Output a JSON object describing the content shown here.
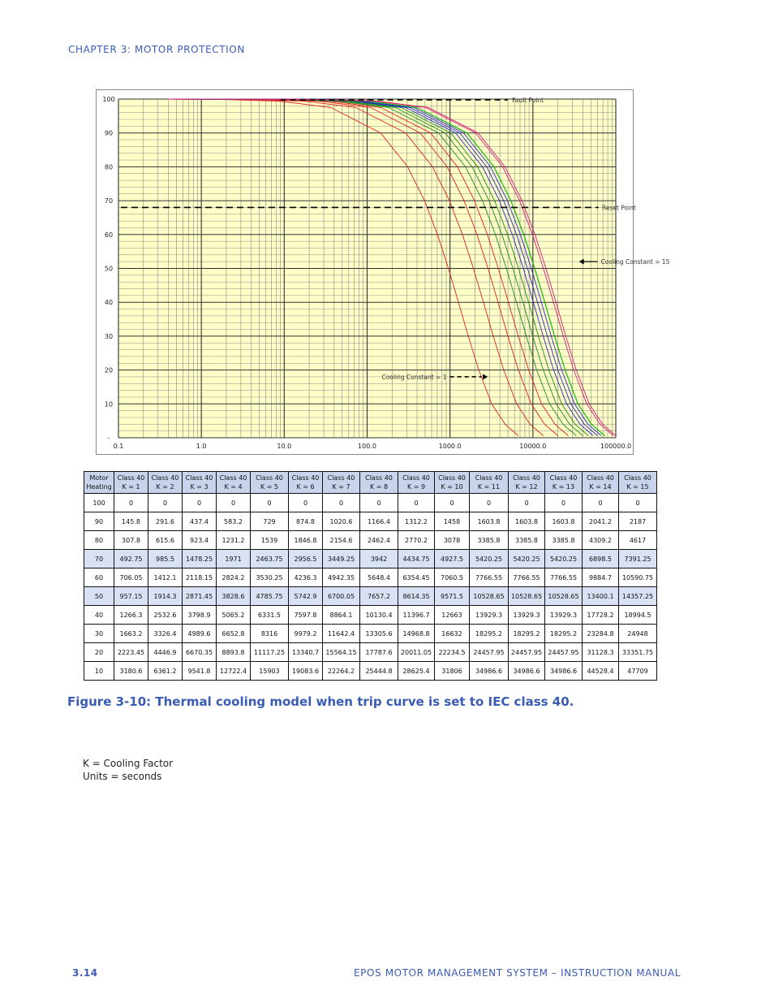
{
  "header": {
    "chapter": "CHAPTER 3: MOTOR PROTECTION"
  },
  "chart_data": {
    "type": "line",
    "xscale": "log",
    "xlim": [
      0.1,
      100000
    ],
    "ylim": [
      0,
      100
    ],
    "x_tick_labels": [
      "0.1",
      "1.0",
      "10.0",
      "100.0",
      "1000.0",
      "10000.0",
      "100000.0"
    ],
    "y_tick_labels": [
      "100",
      "90",
      "80",
      "70",
      "60",
      "50",
      "40",
      "30",
      "20",
      "10",
      "-"
    ],
    "y_tick_values": [
      100,
      90,
      80,
      70,
      60,
      50,
      40,
      30,
      20,
      10,
      0
    ],
    "annotations": {
      "fault_point": "Fault Point",
      "reset_point": "Reset Point",
      "cooling_15": "Cooling Constant = 15",
      "cooling_1": "Cooling Constant = 1"
    },
    "fault_level": 100,
    "reset_level": 68,
    "series_colors": [
      "#e02020",
      "#e02020",
      "#e02020",
      "#e02020",
      "#1f8a1f",
      "#1f8a1f",
      "#1f8a1f",
      "#2a2ad0",
      "#2a2ad0",
      "#2a2ad0",
      "#111111",
      "#111111",
      "#11dd11",
      "#d81b7a",
      "#d81b7a"
    ],
    "series": [
      {
        "name": "K = 1",
        "values": [
          0,
          145.8,
          307.8,
          492.75,
          706.05,
          957.15,
          1266.3,
          1663.2,
          2223.45,
          3180.6
        ]
      },
      {
        "name": "K = 2",
        "values": [
          0,
          291.6,
          615.6,
          985.5,
          1412.1,
          1914.3,
          2532.6,
          3326.4,
          4446.9,
          6361.2
        ]
      },
      {
        "name": "K = 3",
        "values": [
          0,
          437.4,
          923.4,
          1478.25,
          2118.15,
          2871.45,
          3798.9,
          4989.6,
          6670.35,
          9541.8
        ]
      },
      {
        "name": "K = 4",
        "values": [
          0,
          583.2,
          1231.2,
          1971,
          2824.2,
          3828.6,
          5065.2,
          6652.8,
          8893.8,
          12722.4
        ]
      },
      {
        "name": "K = 5",
        "values": [
          0,
          729,
          1539,
          2463.75,
          3530.25,
          4785.75,
          6331.5,
          8316,
          11117.25,
          15903
        ]
      },
      {
        "name": "K = 6",
        "values": [
          0,
          874.8,
          1846.8,
          2956.5,
          4236.3,
          5742.9,
          7597.8,
          9979.2,
          13340.7,
          19083.6
        ]
      },
      {
        "name": "K = 7",
        "values": [
          0,
          1020.6,
          2154.6,
          3449.25,
          4942.35,
          6700.05,
          8864.1,
          11642.4,
          15564.15,
          22264.2
        ]
      },
      {
        "name": "K = 8",
        "values": [
          0,
          1166.4,
          2462.4,
          3942,
          5648.4,
          7657.2,
          10130.4,
          13305.6,
          17787.6,
          25444.8
        ]
      },
      {
        "name": "K = 9",
        "values": [
          0,
          1312.2,
          2770.2,
          4434.75,
          6354.45,
          8614.35,
          11396.7,
          14968.8,
          20011.05,
          28625.4
        ]
      },
      {
        "name": "K = 10",
        "values": [
          0,
          1458,
          3078,
          4927.5,
          7060.5,
          9571.5,
          12663,
          16632,
          22234.5,
          31806
        ]
      },
      {
        "name": "K = 11",
        "values": [
          0,
          1603.8,
          3385.8,
          5420.25,
          7766.55,
          10528.65,
          13929.3,
          18295.2,
          24457.95,
          34986.6
        ]
      },
      {
        "name": "K = 12",
        "values": [
          0,
          1603.8,
          3385.8,
          5420.25,
          7766.55,
          10528.65,
          13929.3,
          18295.2,
          24457.95,
          34986.6
        ]
      },
      {
        "name": "K = 13",
        "values": [
          0,
          1603.8,
          3385.8,
          5420.25,
          7766.55,
          10528.65,
          13929.3,
          18295.2,
          24457.95,
          34986.6
        ]
      },
      {
        "name": "K = 14",
        "values": [
          0,
          2041.2,
          4309.2,
          6898.5,
          9884.7,
          13400.1,
          17728.2,
          23284.8,
          31128.3,
          44528.4
        ]
      },
      {
        "name": "K = 15",
        "values": [
          0,
          2187,
          4617,
          7391.25,
          10590.75,
          14357.25,
          18994.5,
          24948,
          33351.75,
          47709
        ]
      }
    ],
    "series_heating": [
      100,
      90,
      80,
      70,
      60,
      50,
      40,
      30,
      20,
      10
    ]
  },
  "table": {
    "headers": [
      [
        "Motor",
        "Heating"
      ],
      [
        "Class 40",
        "K = 1"
      ],
      [
        "Class 40",
        "K = 2"
      ],
      [
        "Class 40",
        "K = 3"
      ],
      [
        "Class 40",
        "K = 4"
      ],
      [
        "Class 40",
        "K = 5"
      ],
      [
        "Class 40",
        "K = 6"
      ],
      [
        "Class 40",
        "K = 7"
      ],
      [
        "Class 40",
        "K = 8"
      ],
      [
        "Class 40",
        "K = 9"
      ],
      [
        "Class 40",
        "K = 10"
      ],
      [
        "Class 40",
        "K = 11"
      ],
      [
        "Class 40",
        "K = 12"
      ],
      [
        "Class 40",
        "K = 13"
      ],
      [
        "Class 40",
        "K = 14"
      ],
      [
        "Class 40",
        "K = 15"
      ]
    ],
    "rows": [
      [
        "100",
        "0",
        "0",
        "0",
        "0",
        "0",
        "0",
        "0",
        "0",
        "0",
        "0",
        "0",
        "0",
        "0",
        "0",
        "0"
      ],
      [
        "90",
        "145.8",
        "291.6",
        "437.4",
        "583.2",
        "729",
        "874.8",
        "1020.6",
        "1166.4",
        "1312.2",
        "1458",
        "1603.8",
        "1603.8",
        "1603.8",
        "2041.2",
        "2187"
      ],
      [
        "80",
        "307.8",
        "615.6",
        "923.4",
        "1231.2",
        "1539",
        "1846.8",
        "2154.6",
        "2462.4",
        "2770.2",
        "3078",
        "3385.8",
        "3385.8",
        "3385.8",
        "4309.2",
        "4617"
      ],
      [
        "70",
        "492.75",
        "985.5",
        "1478.25",
        "1971",
        "2463.75",
        "2956.5",
        "3449.25",
        "3942",
        "4434.75",
        "4927.5",
        "5420.25",
        "5420.25",
        "5420.25",
        "6898.5",
        "7391.25"
      ],
      [
        "60",
        "706.05",
        "1412.1",
        "2118.15",
        "2824.2",
        "3530.25",
        "4236.3",
        "4942.35",
        "5648.4",
        "6354.45",
        "7060.5",
        "7766.55",
        "7766.55",
        "7766.55",
        "9884.7",
        "10590.75"
      ],
      [
        "50",
        "957.15",
        "1914.3",
        "2871.45",
        "3828.6",
        "4785.75",
        "5742.9",
        "6700.05",
        "7657.2",
        "8614.35",
        "9571.5",
        "10528.65",
        "10528.65",
        "10528.65",
        "13400.1",
        "14357.25"
      ],
      [
        "40",
        "1266.3",
        "2532.6",
        "3798.9",
        "5065.2",
        "6331.5",
        "7597.8",
        "8864.1",
        "10130.4",
        "11396.7",
        "12663",
        "13929.3",
        "13929.3",
        "13929.3",
        "17728.2",
        "18994.5"
      ],
      [
        "30",
        "1663.2",
        "3326.4",
        "4989.6",
        "6652.8",
        "8316",
        "9979.2",
        "11642.4",
        "13305.6",
        "14968.8",
        "16632",
        "18295.2",
        "18295.2",
        "18295.2",
        "23284.8",
        "24948"
      ],
      [
        "20",
        "2223.45",
        "4446.9",
        "6670.35",
        "8893.8",
        "11117.25",
        "13340.7",
        "15564.15",
        "17787.6",
        "20011.05",
        "22234.5",
        "24457.95",
        "24457.95",
        "24457.95",
        "31128.3",
        "33351.75"
      ],
      [
        "10",
        "3180.6",
        "6361.2",
        "9541.8",
        "12722.4",
        "15903",
        "19083.6",
        "22264.2",
        "25444.8",
        "28625.4",
        "31806",
        "34986.6",
        "34986.6",
        "34986.6",
        "44528.4",
        "47709"
      ]
    ]
  },
  "caption": "Figure 3-10: Thermal cooling model when trip curve is set to IEC class 40.",
  "notes": [
    "K = Cooling Factor",
    "Units = seconds"
  ],
  "footer": {
    "page": "3.14",
    "title": "EPOS MOTOR MANAGEMENT SYSTEM – INSTRUCTION MANUAL"
  }
}
